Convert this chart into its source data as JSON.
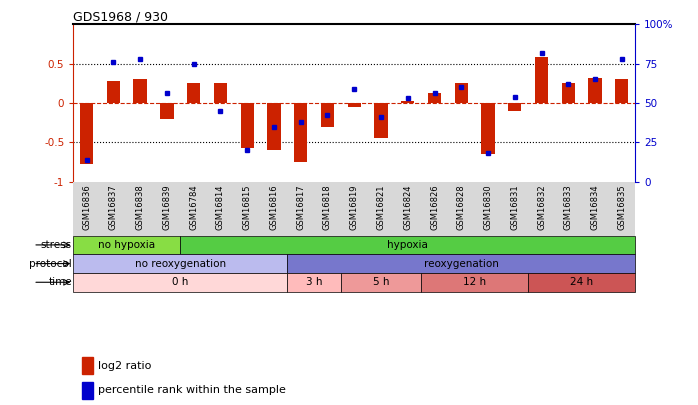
{
  "title": "GDS1968 / 930",
  "samples": [
    "GSM16836",
    "GSM16837",
    "GSM16838",
    "GSM16839",
    "GSM16784",
    "GSM16814",
    "GSM16815",
    "GSM16816",
    "GSM16817",
    "GSM16818",
    "GSM16819",
    "GSM16821",
    "GSM16824",
    "GSM16826",
    "GSM16828",
    "GSM16830",
    "GSM16831",
    "GSM16832",
    "GSM16833",
    "GSM16834",
    "GSM16835"
  ],
  "log2_ratio": [
    -0.78,
    0.28,
    0.3,
    -0.2,
    0.25,
    0.25,
    -0.57,
    -0.6,
    -0.75,
    -0.3,
    -0.05,
    -0.45,
    0.02,
    0.12,
    0.25,
    -0.65,
    -0.1,
    0.58,
    0.25,
    0.32,
    0.3
  ],
  "percentile_rank": [
    14,
    76,
    78,
    56,
    75,
    45,
    20,
    35,
    38,
    42,
    59,
    41,
    53,
    56,
    60,
    18,
    54,
    82,
    62,
    65,
    78
  ],
  "bar_color": "#cc2200",
  "dot_color": "#0000cc",
  "ylim_left": [
    -1.0,
    1.0
  ],
  "ylim_right": [
    0,
    100
  ],
  "yticks_left": [
    -1.0,
    -0.5,
    0.0,
    0.5
  ],
  "ytick_labels_left": [
    "-1",
    "-0.5",
    "0",
    "0.5"
  ],
  "yticks_right": [
    0,
    25,
    50,
    75,
    100
  ],
  "ytick_labels_right": [
    "0",
    "25",
    "50",
    "75",
    "100%"
  ],
  "stress_groups": [
    {
      "label": "no hypoxia",
      "start": 0,
      "end": 4,
      "color": "#88dd44"
    },
    {
      "label": "hypoxia",
      "start": 4,
      "end": 21,
      "color": "#55cc44"
    }
  ],
  "protocol_groups": [
    {
      "label": "no reoxygenation",
      "start": 0,
      "end": 8,
      "color": "#bbbbee"
    },
    {
      "label": "reoxygenation",
      "start": 8,
      "end": 21,
      "color": "#7777cc"
    }
  ],
  "time_groups": [
    {
      "label": "0 h",
      "start": 0,
      "end": 8,
      "color": "#ffd8d8"
    },
    {
      "label": "3 h",
      "start": 8,
      "end": 10,
      "color": "#ffbbbb"
    },
    {
      "label": "5 h",
      "start": 10,
      "end": 13,
      "color": "#ee9999"
    },
    {
      "label": "12 h",
      "start": 13,
      "end": 17,
      "color": "#dd7777"
    },
    {
      "label": "24 h",
      "start": 17,
      "end": 21,
      "color": "#cc5555"
    }
  ],
  "row_labels": [
    "stress",
    "protocol",
    "time"
  ],
  "left_axis_color": "#cc2200",
  "right_axis_color": "#0000cc",
  "background_color": "#ffffff",
  "bar_width": 0.5
}
